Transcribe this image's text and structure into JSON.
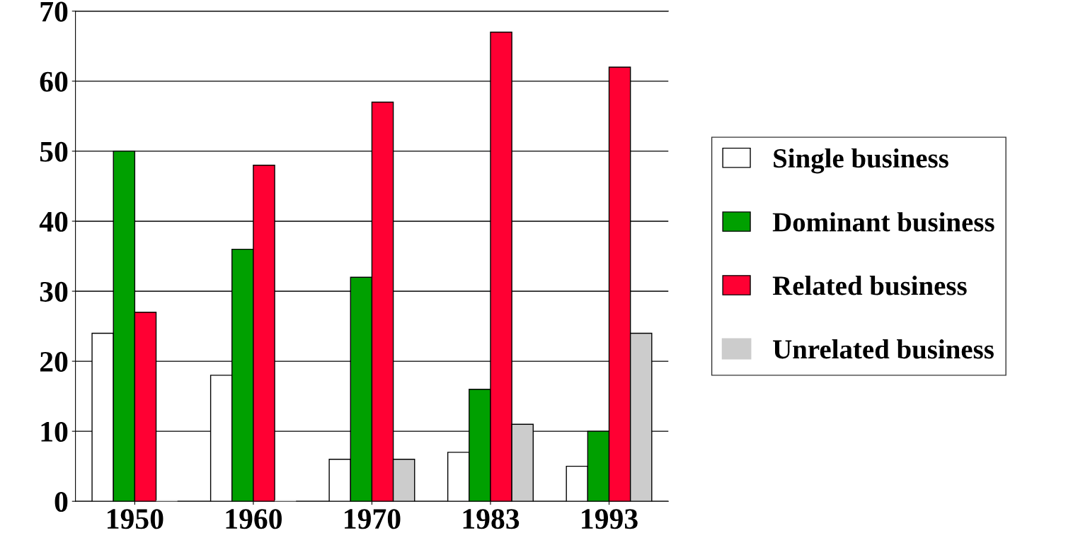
{
  "chart_data": {
    "type": "bar",
    "categories": [
      "1950",
      "1960",
      "1970",
      "1983",
      "1993"
    ],
    "series": [
      {
        "name": "Single business",
        "color": "#ffffff",
        "values": [
          24,
          18,
          6,
          7,
          5
        ]
      },
      {
        "name": "Dominant business",
        "color": "#00a000",
        "values": [
          50,
          36,
          32,
          16,
          10
        ]
      },
      {
        "name": "Related business",
        "color": "#ff0033",
        "values": [
          27,
          48,
          57,
          67,
          62
        ]
      },
      {
        "name": "Unrelated business",
        "color": "#cccccc",
        "values": [
          0,
          0,
          6,
          11,
          24
        ]
      }
    ],
    "ylim": [
      0,
      70
    ],
    "yticks": [
      0,
      10,
      20,
      30,
      40,
      50,
      60,
      70
    ],
    "grid": "y",
    "legend": "right"
  }
}
